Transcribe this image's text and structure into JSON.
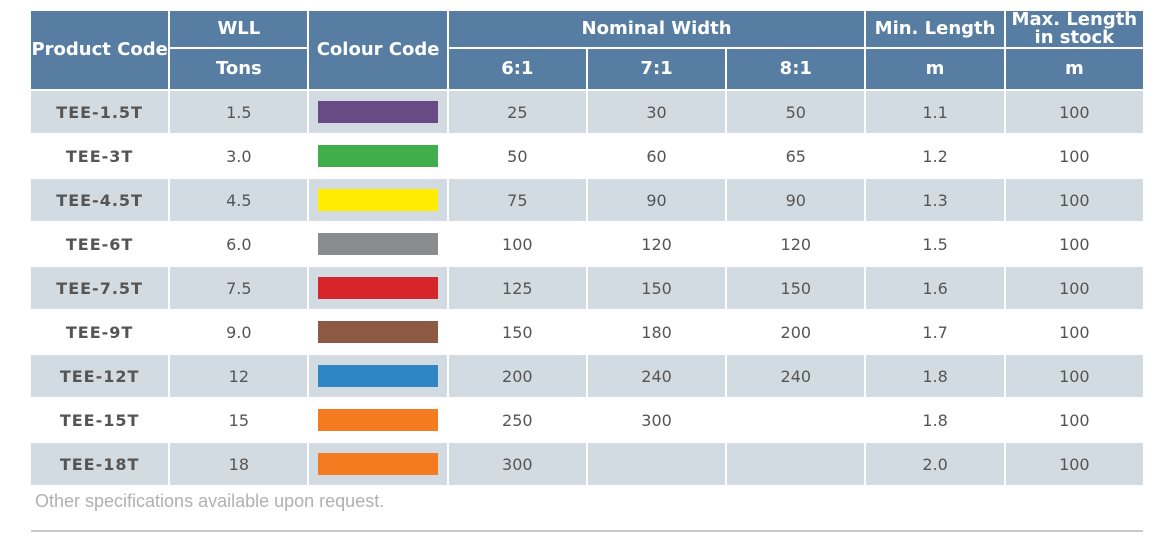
{
  "headers": {
    "product_code": "Product Code",
    "wll": "WLL",
    "wll_unit": "Tons",
    "colour_code": "Colour Code",
    "nominal_width": "Nominal Width",
    "ratio_6": "6:1",
    "ratio_7": "7:1",
    "ratio_8": "8:1",
    "min_length": "Min. Length",
    "min_length_unit": "m",
    "max_length_line1": "Max. Length",
    "max_length_line2": "in stock",
    "max_length_unit": "m"
  },
  "rows": [
    {
      "code": "TEE-1.5T",
      "wll": "1.5",
      "colour": "#684b85",
      "w6": "25",
      "w7": "30",
      "w8": "50",
      "min": "1.1",
      "max": "100"
    },
    {
      "code": "TEE-3T",
      "wll": "3.0",
      "colour": "#40ae4a",
      "w6": "50",
      "w7": "60",
      "w8": "65",
      "min": "1.2",
      "max": "100"
    },
    {
      "code": "TEE-4.5T",
      "wll": "4.5",
      "colour": "#ffec00",
      "w6": "75",
      "w7": "90",
      "w8": "90",
      "min": "1.3",
      "max": "100"
    },
    {
      "code": "TEE-6T",
      "wll": "6.0",
      "colour": "#8b8c8e",
      "w6": "100",
      "w7": "120",
      "w8": "120",
      "min": "1.5",
      "max": "100"
    },
    {
      "code": "TEE-7.5T",
      "wll": "7.5",
      "colour": "#d6262c",
      "w6": "125",
      "w7": "150",
      "w8": "150",
      "min": "1.6",
      "max": "100"
    },
    {
      "code": "TEE-9T",
      "wll": "9.0",
      "colour": "#8c5a43",
      "w6": "150",
      "w7": "180",
      "w8": "200",
      "min": "1.7",
      "max": "100"
    },
    {
      "code": "TEE-12T",
      "wll": "12",
      "colour": "#2f86c3",
      "w6": "200",
      "w7": "240",
      "w8": "240",
      "min": "1.8",
      "max": "100"
    },
    {
      "code": "TEE-15T",
      "wll": "15",
      "colour": "#f47b20",
      "w6": "250",
      "w7": "300",
      "w8": "",
      "min": "1.8",
      "max": "100"
    },
    {
      "code": "TEE-18T",
      "wll": "18",
      "colour": "#f47b20",
      "w6": "300",
      "w7": "",
      "w8": "",
      "min": "2.0",
      "max": "100"
    }
  ],
  "footnote": "Other specifications available upon request."
}
